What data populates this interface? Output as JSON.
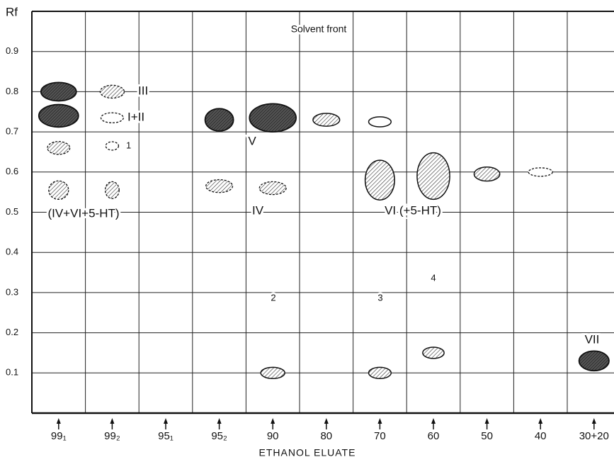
{
  "chart_data": {
    "type": "tlc",
    "y_label": "Rf",
    "x_label": "ETHANOL ELUATE",
    "categories": [
      "99₁",
      "99₂",
      "95₁",
      "95₂",
      "90",
      "80",
      "70",
      "60",
      "50",
      "40",
      "30+20"
    ],
    "ylim": [
      0,
      1.0
    ],
    "yticks": [
      0.1,
      0.2,
      0.3,
      0.4,
      0.5,
      0.6,
      0.7,
      0.8,
      0.9
    ],
    "grid": true,
    "spots": [
      {
        "lane": 0,
        "rf": 0.8,
        "h": 0.046,
        "w": 0.66,
        "style": "dark"
      },
      {
        "lane": 0,
        "rf": 0.74,
        "h": 0.056,
        "w": 0.74,
        "style": "dark"
      },
      {
        "lane": 0,
        "rf": 0.66,
        "h": 0.032,
        "w": 0.42,
        "style": "hatched-dashed"
      },
      {
        "lane": 0,
        "rf": 0.555,
        "h": 0.046,
        "w": 0.37,
        "style": "hatched-dashed"
      },
      {
        "lane": 1,
        "rf": 0.8,
        "h": 0.032,
        "w": 0.45,
        "style": "hatched-dashed"
      },
      {
        "lane": 1,
        "rf": 0.735,
        "h": 0.025,
        "w": 0.42,
        "style": "dashed"
      },
      {
        "lane": 1,
        "rf": 0.665,
        "h": 0.021,
        "w": 0.24,
        "style": "dashed"
      },
      {
        "lane": 1,
        "rf": 0.555,
        "h": 0.042,
        "w": 0.26,
        "style": "hatched-dashed"
      },
      {
        "lane": 3,
        "rf": 0.73,
        "h": 0.056,
        "w": 0.53,
        "style": "dark"
      },
      {
        "lane": 3,
        "rf": 0.565,
        "h": 0.032,
        "w": 0.5,
        "style": "hatched-dashed"
      },
      {
        "lane": 4,
        "rf": 0.735,
        "h": 0.07,
        "w": 0.87,
        "style": "dark"
      },
      {
        "lane": 4,
        "rf": 0.56,
        "h": 0.032,
        "w": 0.5,
        "style": "hatched-dashed"
      },
      {
        "lane": 4,
        "rf": 0.1,
        "h": 0.028,
        "w": 0.45,
        "style": "hatched"
      },
      {
        "lane": 5,
        "rf": 0.73,
        "h": 0.032,
        "w": 0.5,
        "style": "hatched"
      },
      {
        "lane": 6,
        "rf": 0.725,
        "h": 0.025,
        "w": 0.42,
        "style": "outline"
      },
      {
        "lane": 6,
        "rf": 0.58,
        "h": 0.099,
        "w": 0.55,
        "style": "hatched"
      },
      {
        "lane": 6,
        "rf": 0.1,
        "h": 0.028,
        "w": 0.42,
        "style": "hatched"
      },
      {
        "lane": 7,
        "rf": 0.59,
        "h": 0.116,
        "w": 0.61,
        "style": "hatched"
      },
      {
        "lane": 7,
        "rf": 0.15,
        "h": 0.028,
        "w": 0.4,
        "style": "hatched"
      },
      {
        "lane": 8,
        "rf": 0.595,
        "h": 0.035,
        "w": 0.48,
        "style": "hatched"
      },
      {
        "lane": 9,
        "rf": 0.6,
        "h": 0.021,
        "w": 0.45,
        "style": "dashed"
      },
      {
        "lane": 10,
        "rf": 0.13,
        "h": 0.049,
        "w": 0.56,
        "style": "dark"
      }
    ],
    "annotations": [
      "Solvent front",
      "III",
      "I+II",
      "1",
      "(IV+VI+5-HT)",
      "V",
      "IV",
      "VI (+5-HT)",
      "2",
      "3",
      "4",
      "VII"
    ]
  }
}
